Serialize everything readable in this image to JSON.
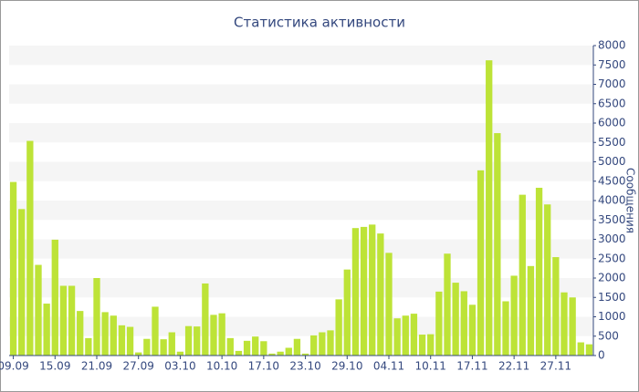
{
  "chart_data": {
    "type": "bar",
    "title": "Статистика активности",
    "y_label": "Сообщения",
    "categories": [
      "09.09",
      null,
      null,
      null,
      null,
      "15.09",
      null,
      null,
      null,
      null,
      "21.09",
      null,
      null,
      null,
      null,
      "27.09",
      null,
      null,
      null,
      null,
      "03.10",
      null,
      null,
      null,
      null,
      "10.10",
      null,
      null,
      null,
      null,
      "17.10",
      null,
      null,
      null,
      null,
      "23.10",
      null,
      null,
      null,
      null,
      "29.10",
      null,
      null,
      null,
      null,
      "04.11",
      null,
      null,
      null,
      null,
      "10.11",
      null,
      null,
      null,
      null,
      "17.11",
      null,
      null,
      null,
      null,
      "22.11",
      null,
      null,
      null,
      null,
      "27.11",
      null,
      null,
      null,
      null
    ],
    "values": [
      4480,
      3780,
      5540,
      2340,
      1340,
      2990,
      1800,
      1800,
      1150,
      450,
      2000,
      1120,
      1030,
      780,
      740,
      80,
      430,
      1260,
      420,
      600,
      100,
      760,
      750,
      1860,
      1050,
      1090,
      450,
      120,
      380,
      490,
      370,
      50,
      100,
      200,
      430,
      50,
      520,
      600,
      650,
      1450,
      2220,
      3290,
      3320,
      3380,
      3150,
      2650,
      960,
      1030,
      1080,
      540,
      550,
      1650,
      2630,
      1880,
      1660,
      1310,
      4780,
      7620,
      5740,
      1400,
      2060,
      4150,
      2310,
      4330,
      3900,
      2540,
      1630,
      1500,
      340,
      290
    ],
    "color": "#bde337",
    "ylim": [
      0,
      8000
    ],
    "yticks": [
      0,
      500,
      1000,
      1500,
      2000,
      2500,
      3000,
      3500,
      4000,
      4500,
      5000,
      5500,
      6000,
      6500,
      7000,
      7500,
      8000
    ],
    "grid": true
  }
}
